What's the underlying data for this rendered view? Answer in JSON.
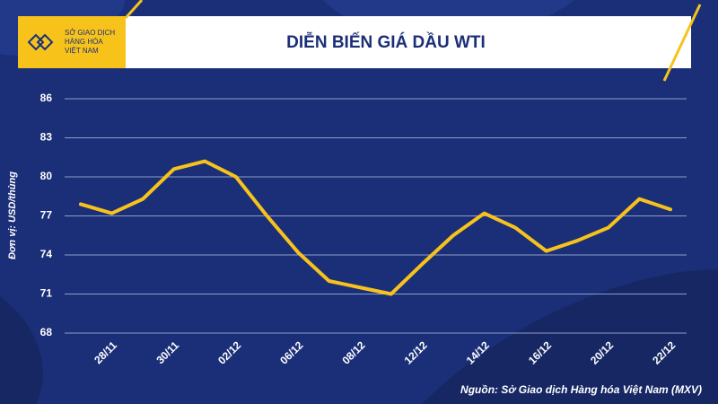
{
  "logo": [
    "SỞ GIAO DỊCH",
    "HÀNG HÓA",
    "VIỆT NAM"
  ],
  "chart_data": {
    "type": "line",
    "title": "DIỄN BIẾN GIÁ DẦU WTI",
    "y_label": "Đơn vị: USD/thùng",
    "source": "Nguồn: Sở Giao dịch Hàng hóa Việt Nam (MXV)",
    "categories": [
      null,
      "28/11",
      null,
      "30/11",
      null,
      "02/12",
      null,
      "06/12",
      null,
      "08/12",
      null,
      "12/12",
      null,
      "14/12",
      null,
      "16/12",
      null,
      "20/12",
      null,
      "22/12"
    ],
    "values": [
      77.9,
      77.2,
      78.3,
      80.6,
      81.2,
      80.0,
      77.0,
      74.2,
      72.0,
      71.5,
      71.0,
      73.3,
      75.5,
      77.2,
      76.1,
      74.3,
      75.1,
      76.1,
      78.3,
      77.5
    ],
    "color": "#f7c31b",
    "ylim": [
      68,
      86
    ],
    "yticks": [
      68,
      71,
      74,
      77,
      80,
      83,
      86
    ],
    "grid": true
  }
}
